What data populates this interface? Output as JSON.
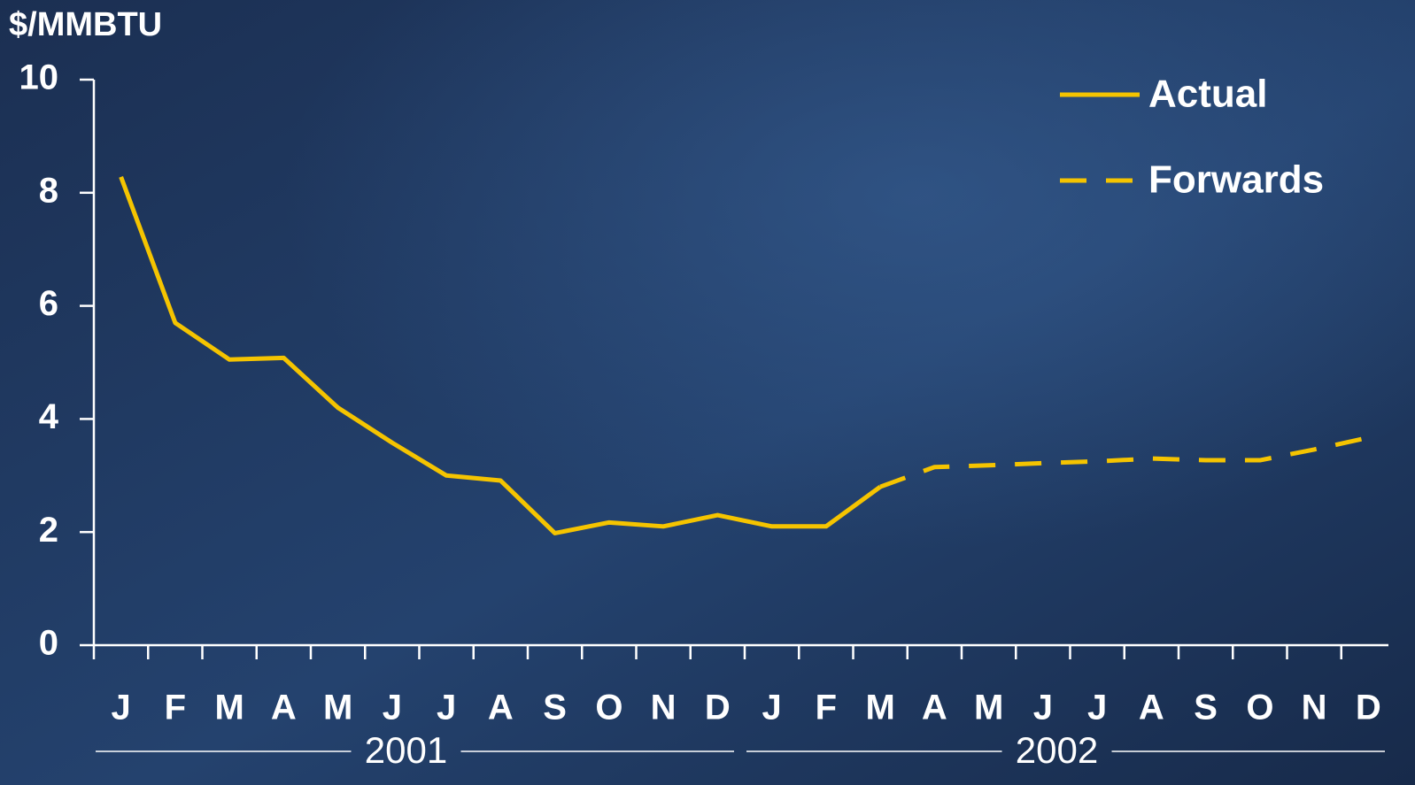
{
  "chart_data": {
    "type": "line",
    "y_label": "$/MMBTU",
    "categories": [
      "J",
      "F",
      "M",
      "A",
      "M",
      "J",
      "J",
      "A",
      "S",
      "O",
      "N",
      "D",
      "J",
      "F",
      "M",
      "A",
      "M",
      "J",
      "J",
      "A",
      "S",
      "O",
      "N",
      "D"
    ],
    "groups": [
      "2001",
      "2002"
    ],
    "series": [
      {
        "name": "Actual",
        "color": "#f5c400",
        "style": "solid",
        "values": [
          8.28,
          5.7,
          5.05,
          5.08,
          4.2,
          3.58,
          3.0,
          2.91,
          1.98,
          2.17,
          2.1,
          2.3,
          2.1,
          2.1,
          2.8,
          null,
          null,
          null,
          null,
          null,
          null,
          null,
          null,
          null
        ]
      },
      {
        "name": "Forwards",
        "color": "#f5c400",
        "style": "dashed",
        "values": [
          null,
          null,
          null,
          null,
          null,
          null,
          null,
          null,
          null,
          null,
          null,
          null,
          null,
          null,
          2.8,
          3.15,
          3.18,
          3.22,
          3.25,
          3.3,
          3.27,
          3.27,
          3.46,
          3.67
        ]
      }
    ],
    "ylim": [
      0,
      10
    ],
    "yticks": [
      0,
      2,
      4,
      6,
      8,
      10
    ],
    "grid": false,
    "legend": "top-right"
  }
}
